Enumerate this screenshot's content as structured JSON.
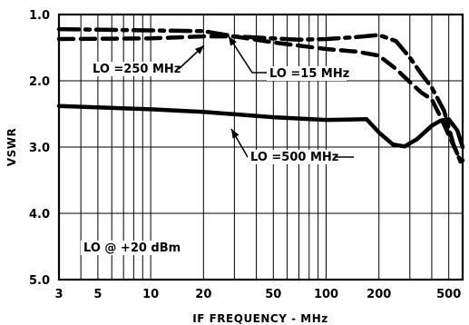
{
  "chart_data": {
    "type": "line",
    "xlabel": "IF FREQUENCY - MHz",
    "ylabel": "VSWR",
    "x_scale": "log",
    "xlim": [
      3,
      600
    ],
    "ylim": [
      1.0,
      5.0
    ],
    "y_inverted": true,
    "grid": true,
    "x_ticks": [
      3,
      5,
      10,
      20,
      50,
      100,
      200,
      500
    ],
    "x_tick_labels": [
      "3",
      "5",
      "10",
      "20",
      "50",
      "100",
      "200",
      "500"
    ],
    "y_ticks": [
      1.0,
      2.0,
      3.0,
      4.0,
      5.0
    ],
    "y_tick_labels": [
      "1.0",
      "2.0",
      "3.0",
      "4.0",
      "5.0"
    ],
    "series": [
      {
        "name": "LO =500 MHz",
        "style": "solid",
        "x": [
          3,
          10,
          20,
          50,
          100,
          170,
          200,
          240,
          280,
          330,
          400,
          450,
          500,
          560,
          600
        ],
        "y": [
          2.38,
          2.43,
          2.47,
          2.55,
          2.59,
          2.58,
          2.78,
          2.96,
          2.99,
          2.88,
          2.68,
          2.6,
          2.58,
          2.75,
          3.0
        ]
      },
      {
        "name": "LO =15 MHz",
        "style": "dash-dot",
        "x": [
          3,
          10,
          20,
          30,
          50,
          70,
          100,
          150,
          200,
          250,
          300,
          350,
          400,
          470,
          530,
          600
        ],
        "y": [
          1.22,
          1.24,
          1.25,
          1.33,
          1.36,
          1.38,
          1.37,
          1.34,
          1.31,
          1.4,
          1.65,
          1.9,
          2.1,
          2.45,
          2.95,
          3.3
        ]
      },
      {
        "name": "LO =250 MHz",
        "style": "dashed",
        "x": [
          3,
          10,
          20,
          30,
          50,
          100,
          150,
          200,
          250,
          300,
          350,
          400,
          450,
          500,
          560,
          600
        ],
        "y": [
          1.37,
          1.36,
          1.33,
          1.33,
          1.42,
          1.52,
          1.56,
          1.62,
          1.82,
          2.02,
          2.18,
          2.28,
          2.55,
          2.82,
          3.1,
          3.2
        ]
      }
    ],
    "annotations": [
      {
        "text": "LO =250 MHz"
      },
      {
        "text": "LO =15 MHz"
      },
      {
        "text": "LO =500 MHz"
      },
      {
        "text": "LO @ +20 dBm"
      }
    ]
  }
}
